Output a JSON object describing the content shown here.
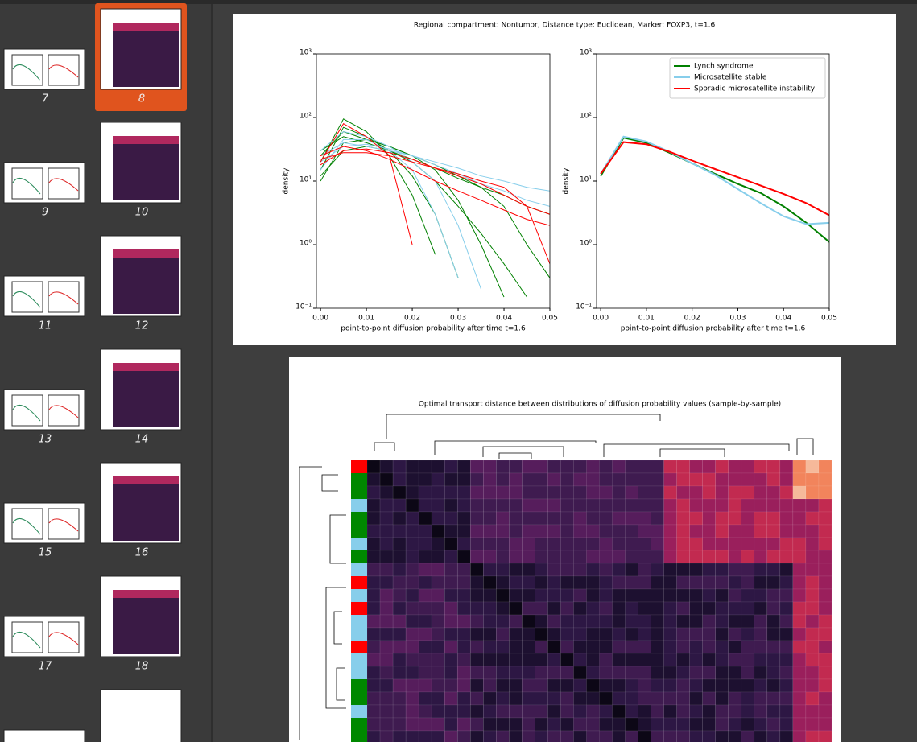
{
  "sidebar": {
    "page_labels": [
      "7",
      "8",
      "9",
      "10",
      "11",
      "12",
      "13",
      "14",
      "15",
      "16",
      "17",
      "18"
    ]
  },
  "figure_1": {
    "title": "Regional compartment: Nontumor, Distance type: Euclidean, Marker: FOXP3, t=1.6"
  },
  "chart_data": [
    {
      "type": "line",
      "xlabel": "point-to-point diffusion probability after time t=1.6",
      "ylabel": "density",
      "yscale": "log",
      "xlim": [
        -0.0009,
        0.05
      ],
      "ylim": [
        0.1,
        1000
      ],
      "xticks": [
        {
          "value": 0,
          "label": "0.00"
        },
        0.01,
        0.02,
        0.03,
        0.04,
        0.05
      ],
      "yticks": [
        {
          "value": 0.1,
          "label": "10⁻¹"
        },
        {
          "value": 1,
          "label": "10⁰"
        },
        {
          "value": 10,
          "label": "10¹"
        },
        {
          "value": 100,
          "label": "10²"
        },
        {
          "value": 1000,
          "label": "10³"
        }
      ],
      "x": [
        0,
        0.005,
        0.01,
        0.015,
        0.02,
        0.025,
        0.03,
        0.035,
        0.04,
        0.045,
        0.05
      ],
      "series": [
        {
          "color": "#008000",
          "values": [
            20,
            95,
            60,
            25,
            6,
            0.7,
            null,
            null,
            null,
            null,
            null
          ]
        },
        {
          "color": "#008000",
          "values": [
            15,
            70,
            50,
            30,
            12,
            3,
            0.3,
            null,
            null,
            null,
            null
          ]
        },
        {
          "color": "#008000",
          "values": [
            25,
            60,
            45,
            35,
            25,
            15,
            5,
            1,
            0.15,
            null,
            null
          ]
        },
        {
          "color": "#008000",
          "values": [
            10,
            40,
            45,
            35,
            25,
            18,
            12,
            8,
            4,
            1,
            0.3
          ]
        },
        {
          "color": "#008000",
          "values": [
            30,
            50,
            40,
            30,
            22,
            16,
            11,
            8,
            6,
            4,
            3
          ]
        },
        {
          "color": "#008000",
          "values": [
            12,
            30,
            35,
            30,
            20,
            10,
            4,
            1.5,
            0.5,
            0.15,
            null
          ]
        },
        {
          "color": "#87ceeb",
          "values": [
            20,
            35,
            38,
            32,
            25,
            18,
            13,
            9,
            7,
            5,
            4
          ]
        },
        {
          "color": "#87ceeb",
          "values": [
            15,
            45,
            45,
            30,
            15,
            3,
            0.3,
            null,
            null,
            null,
            null
          ]
        },
        {
          "color": "#87ceeb",
          "values": [
            25,
            40,
            35,
            30,
            25,
            20,
            16,
            12,
            10,
            8,
            7
          ]
        },
        {
          "color": "#87ceeb",
          "values": [
            30,
            60,
            50,
            35,
            20,
            10,
            2,
            0.2,
            null,
            null,
            null
          ]
        },
        {
          "color": "#ff0000",
          "values": [
            18,
            30,
            32,
            28,
            22,
            16,
            12,
            9,
            6,
            4,
            3
          ]
        },
        {
          "color": "#ff0000",
          "values": [
            25,
            35,
            30,
            22,
            15,
            10,
            7,
            5,
            3.5,
            2.5,
            2
          ]
        },
        {
          "color": "#ff0000",
          "values": [
            20,
            80,
            50,
            25,
            1,
            null,
            null,
            null,
            null,
            null,
            null
          ]
        },
        {
          "color": "#ff0000",
          "values": [
            22,
            28,
            28,
            25,
            20,
            16,
            13,
            10,
            8,
            4,
            0.5
          ]
        }
      ]
    },
    {
      "type": "line",
      "xlabel": "point-to-point diffusion probability after time t=1.6",
      "ylabel": "density",
      "yscale": "log",
      "xlim": [
        -0.0009,
        0.05
      ],
      "ylim": [
        0.1,
        1000
      ],
      "legend": "upper right",
      "xticks": [
        {
          "value": 0,
          "label": "0.00"
        },
        0.01,
        0.02,
        0.03,
        0.04,
        0.05
      ],
      "yticks": [
        {
          "value": 0.1,
          "label": "10⁻¹"
        },
        {
          "value": 1,
          "label": "10⁰"
        },
        {
          "value": 10,
          "label": "10¹"
        },
        {
          "value": 100,
          "label": "10²"
        },
        {
          "value": 1000,
          "label": "10³"
        }
      ],
      "x": [
        0,
        0.005,
        0.01,
        0.015,
        0.02,
        0.025,
        0.03,
        0.035,
        0.04,
        0.045,
        0.05
      ],
      "series": [
        {
          "name": "Lynch syndrome",
          "color": "#008000",
          "values": [
            12,
            48,
            40,
            28,
            19,
            13,
            9,
            6.5,
            4,
            2.2,
            1.1
          ]
        },
        {
          "name": "Microsatellite stable",
          "color": "#87ceeb",
          "values": [
            13,
            50,
            42,
            29,
            19,
            12.5,
            7.5,
            4.5,
            2.8,
            2.1,
            2.2
          ]
        },
        {
          "name": "Sporadic microsatellite instability",
          "color": "#ff0000",
          "values": [
            13,
            41,
            38,
            29,
            21,
            15.5,
            11.5,
            8.5,
            6.3,
            4.5,
            2.9
          ]
        }
      ]
    }
  ],
  "figure_2": {
    "title": "Optimal transport distance between distributions of diffusion probability values (sample-by-sample)"
  }
}
